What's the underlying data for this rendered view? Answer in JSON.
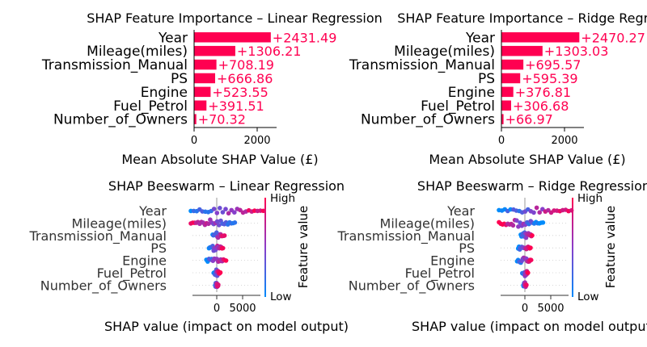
{
  "colors": {
    "positive": "#ff0051",
    "negative": "#008bfb",
    "axis": "#333333"
  },
  "chart_data": [
    {
      "type": "bar",
      "title": "SHAP Feature Importance – Linear Regression",
      "xlabel": "Mean Absolute SHAP Value (£)",
      "categories": [
        "Year",
        "Mileage(miles)",
        "Transmission_Manual",
        "PS",
        "Engine",
        "Fuel_Petrol",
        "Number_of_Owners"
      ],
      "values": [
        2431.49,
        1306.21,
        708.19,
        666.86,
        523.55,
        391.51,
        70.32
      ],
      "value_labels": [
        "+2431.49",
        "+1306.21",
        "+708.19",
        "+666.86",
        "+523.55",
        "+391.51",
        "+70.32"
      ],
      "xlim": [
        0,
        2600
      ],
      "xticks": [
        "0",
        "2000"
      ]
    },
    {
      "type": "bar",
      "title": "SHAP Feature Importance – Ridge Regression",
      "xlabel": "Mean Absolute SHAP Value (£)",
      "categories": [
        "Year",
        "Mileage(miles)",
        "Transmission_Manual",
        "PS",
        "Engine",
        "Fuel_Petrol",
        "Number_of_Owners"
      ],
      "values": [
        2470.27,
        1303.03,
        695.57,
        595.39,
        376.81,
        306.68,
        66.97
      ],
      "value_labels": [
        "+2470.27",
        "+1303.03",
        "+695.57",
        "+595.39",
        "+376.81",
        "+306.68",
        "+66.97"
      ],
      "xlim": [
        0,
        2600
      ],
      "xticks": [
        "0",
        "2000"
      ]
    },
    {
      "type": "scatter",
      "title": "SHAP Beeswarm – Linear Regression",
      "xlabel": "SHAP value (impact on model output)",
      "colorbar_label": "Feature value",
      "colorbar_high": "High",
      "colorbar_low": "Low",
      "categories": [
        "Year",
        "Mileage(miles)",
        "Transmission_Manual",
        "PS",
        "Engine",
        "Fuel_Petrol",
        "Number_of_Owners"
      ],
      "xlim": [
        -5500,
        9000
      ],
      "xticks": [
        "0",
        "5000"
      ],
      "ranges": [
        [
          -5000,
          9000
        ],
        [
          -5000,
          3500
        ],
        [
          -800,
          1500
        ],
        [
          -1500,
          1200
        ],
        [
          -2000,
          1800
        ],
        [
          -600,
          700
        ],
        [
          -300,
          300
        ]
      ]
    },
    {
      "type": "scatter",
      "title": "SHAP Beeswarm – Ridge Regression",
      "xlabel": "SHAP value (impact on model output)",
      "colorbar_label": "Feature value",
      "colorbar_high": "High",
      "colorbar_low": "Low",
      "categories": [
        "Year",
        "Mileage(miles)",
        "Transmission_Manual",
        "PS",
        "Engine",
        "Fuel_Petrol",
        "Number_of_Owners"
      ],
      "xlim": [
        -5500,
        9000
      ],
      "xticks": [
        "0",
        "5000"
      ],
      "ranges": [
        [
          -5000,
          9000
        ],
        [
          -5000,
          3500
        ],
        [
          -800,
          1400
        ],
        [
          -1300,
          1100
        ],
        [
          -1500,
          1200
        ],
        [
          -500,
          600
        ],
        [
          -300,
          300
        ]
      ]
    }
  ]
}
